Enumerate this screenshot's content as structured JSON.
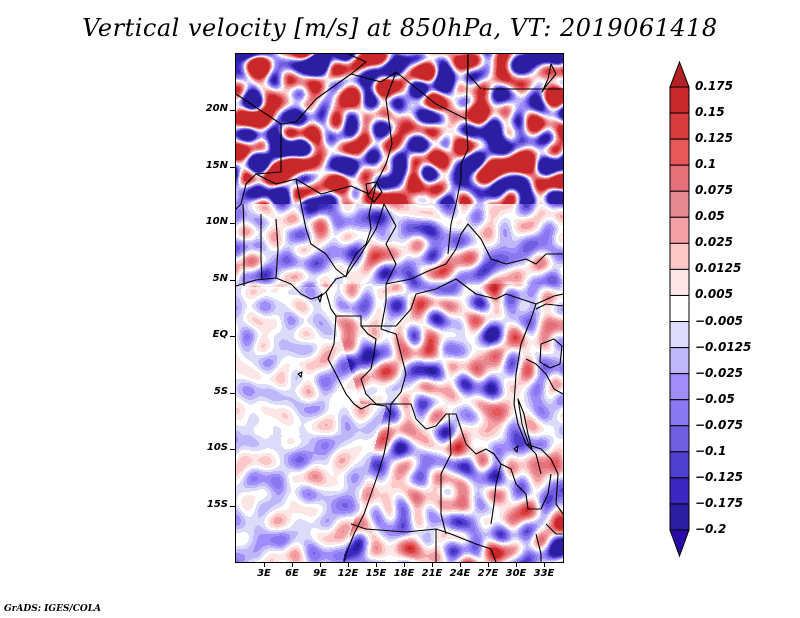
{
  "title": "Vertical velocity [m/s] at 850hPa, VT: 2019061418",
  "credit": "GrADS: IGES/COLA",
  "chart_data": {
    "type": "heatmap",
    "title": "Vertical velocity [m/s] at 850hPa, VT: 2019061418",
    "variable": "Vertical velocity",
    "units": "m/s",
    "level": "850hPa",
    "valid_time": "2019061418",
    "xlabel": "",
    "ylabel": "",
    "x_range_deg": [
      0,
      35
    ],
    "y_range_deg": [
      -20,
      25
    ],
    "x_ticks": [
      {
        "value": 3,
        "label": "3E"
      },
      {
        "value": 6,
        "label": "6E"
      },
      {
        "value": 9,
        "label": "9E"
      },
      {
        "value": 12,
        "label": "12E"
      },
      {
        "value": 15,
        "label": "15E"
      },
      {
        "value": 18,
        "label": "18E"
      },
      {
        "value": 21,
        "label": "21E"
      },
      {
        "value": 24,
        "label": "24E"
      },
      {
        "value": 27,
        "label": "27E"
      },
      {
        "value": 30,
        "label": "30E"
      },
      {
        "value": 33,
        "label": "33E"
      }
    ],
    "y_ticks": [
      {
        "value": 20,
        "label": "20N"
      },
      {
        "value": 15,
        "label": "15N"
      },
      {
        "value": 10,
        "label": "10N"
      },
      {
        "value": 5,
        "label": "5N"
      },
      {
        "value": 0,
        "label": "EQ"
      },
      {
        "value": -5,
        "label": "5S"
      },
      {
        "value": -10,
        "label": "10S"
      },
      {
        "value": -15,
        "label": "15S"
      }
    ],
    "colorbar": {
      "levels": [
        "0.175",
        "0.15",
        "0.125",
        "0.1",
        "0.075",
        "0.05",
        "0.025",
        "0.0125",
        "0.005",
        "−0.005",
        "−0.0125",
        "−0.025",
        "−0.05",
        "−0.075",
        "−0.1",
        "−0.125",
        "−0.175",
        "−0.2"
      ],
      "colors": [
        "#b22222",
        "#c8282a",
        "#d83c3c",
        "#e85858",
        "#e6707a",
        "#e68890",
        "#f5a0a4",
        "#fcc8c8",
        "#fde6e6",
        "#ffffff",
        "#dcdcfa",
        "#c0b6fa",
        "#a08cfa",
        "#8a78f0",
        "#705ee0",
        "#5040d0",
        "#3c28c0",
        "#2c1ea0"
      ],
      "over_color": "#b22222",
      "under_color": "#2a0aa6",
      "extend": "both"
    },
    "grid": false
  }
}
